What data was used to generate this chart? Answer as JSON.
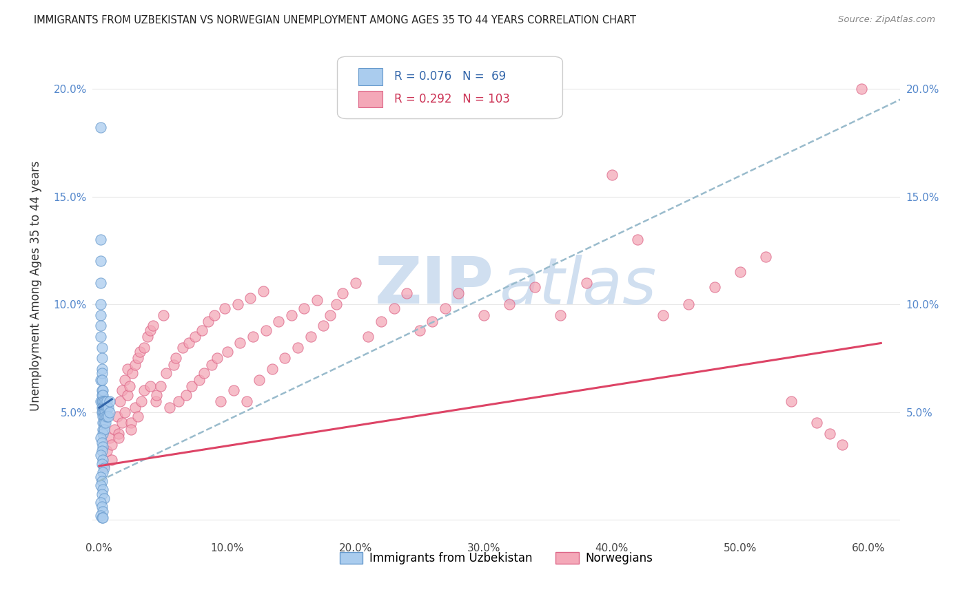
{
  "title": "IMMIGRANTS FROM UZBEKISTAN VS NORWEGIAN UNEMPLOYMENT AMONG AGES 35 TO 44 YEARS CORRELATION CHART",
  "source": "Source: ZipAtlas.com",
  "ylabel": "Unemployment Among Ages 35 to 44 years",
  "xlim": [
    -0.005,
    0.625
  ],
  "ylim": [
    -0.008,
    0.225
  ],
  "xticks": [
    0.0,
    0.1,
    0.2,
    0.3,
    0.4,
    0.5,
    0.6
  ],
  "xticklabels": [
    "0.0%",
    "10.0%",
    "20.0%",
    "30.0%",
    "40.0%",
    "50.0%",
    "60.0%"
  ],
  "yticks": [
    0.0,
    0.05,
    0.1,
    0.15,
    0.2
  ],
  "yticklabels": [
    "",
    "5.0%",
    "10.0%",
    "15.0%",
    "20.0%"
  ],
  "blue_face": "#aaccee",
  "blue_edge": "#6699cc",
  "pink_face": "#f4a8b8",
  "pink_edge": "#dd6688",
  "blue_line": "#3366aa",
  "pink_line": "#dd4466",
  "dash_line": "#99bbcc",
  "watermark": "#d0dff0",
  "bg": "#ffffff",
  "grid_color": "#e8e8e8",
  "blue_line_x": [
    0.0,
    0.01
  ],
  "blue_line_y": [
    0.052,
    0.056
  ],
  "pink_line_x": [
    0.0,
    0.61
  ],
  "pink_line_y": [
    0.025,
    0.082
  ],
  "dash_line_x": [
    0.0,
    0.625
  ],
  "dash_line_y": [
    0.018,
    0.195
  ],
  "uzbek_x": [
    0.001,
    0.001,
    0.001,
    0.001,
    0.001,
    0.001,
    0.001,
    0.001,
    0.001,
    0.001,
    0.002,
    0.002,
    0.002,
    0.002,
    0.002,
    0.002,
    0.002,
    0.002,
    0.002,
    0.002,
    0.003,
    0.003,
    0.003,
    0.003,
    0.003,
    0.003,
    0.003,
    0.003,
    0.003,
    0.004,
    0.004,
    0.004,
    0.004,
    0.004,
    0.004,
    0.005,
    0.005,
    0.005,
    0.005,
    0.005,
    0.006,
    0.006,
    0.006,
    0.007,
    0.007,
    0.008,
    0.008,
    0.001,
    0.002,
    0.003,
    0.002,
    0.001,
    0.003,
    0.002,
    0.004,
    0.003,
    0.001,
    0.002,
    0.001,
    0.003,
    0.002,
    0.004,
    0.001,
    0.002,
    0.003,
    0.001,
    0.002,
    0.003
  ],
  "uzbek_y": [
    0.182,
    0.13,
    0.12,
    0.11,
    0.1,
    0.095,
    0.09,
    0.085,
    0.065,
    0.055,
    0.08,
    0.075,
    0.07,
    0.068,
    0.065,
    0.06,
    0.058,
    0.055,
    0.052,
    0.05,
    0.06,
    0.058,
    0.055,
    0.052,
    0.05,
    0.048,
    0.045,
    0.042,
    0.04,
    0.055,
    0.052,
    0.05,
    0.048,
    0.045,
    0.042,
    0.055,
    0.052,
    0.05,
    0.048,
    0.045,
    0.055,
    0.052,
    0.048,
    0.052,
    0.048,
    0.055,
    0.05,
    0.038,
    0.036,
    0.034,
    0.032,
    0.03,
    0.028,
    0.026,
    0.024,
    0.022,
    0.02,
    0.018,
    0.016,
    0.014,
    0.012,
    0.01,
    0.008,
    0.006,
    0.004,
    0.002,
    0.001,
    0.001
  ],
  "norw_x": [
    0.004,
    0.006,
    0.008,
    0.01,
    0.012,
    0.014,
    0.015,
    0.016,
    0.018,
    0.018,
    0.02,
    0.02,
    0.022,
    0.022,
    0.024,
    0.025,
    0.026,
    0.028,
    0.028,
    0.03,
    0.03,
    0.032,
    0.033,
    0.035,
    0.035,
    0.038,
    0.04,
    0.04,
    0.042,
    0.044,
    0.045,
    0.048,
    0.05,
    0.052,
    0.055,
    0.058,
    0.06,
    0.062,
    0.065,
    0.068,
    0.07,
    0.072,
    0.075,
    0.078,
    0.08,
    0.082,
    0.085,
    0.088,
    0.09,
    0.092,
    0.095,
    0.098,
    0.1,
    0.105,
    0.108,
    0.11,
    0.115,
    0.118,
    0.12,
    0.125,
    0.128,
    0.13,
    0.135,
    0.14,
    0.145,
    0.15,
    0.155,
    0.16,
    0.165,
    0.17,
    0.175,
    0.18,
    0.185,
    0.19,
    0.2,
    0.21,
    0.22,
    0.23,
    0.24,
    0.25,
    0.26,
    0.27,
    0.28,
    0.3,
    0.32,
    0.34,
    0.36,
    0.38,
    0.4,
    0.42,
    0.44,
    0.46,
    0.48,
    0.5,
    0.52,
    0.54,
    0.56,
    0.57,
    0.58,
    0.595,
    0.01,
    0.015,
    0.025
  ],
  "norw_y": [
    0.025,
    0.032,
    0.038,
    0.035,
    0.042,
    0.048,
    0.04,
    0.055,
    0.045,
    0.06,
    0.065,
    0.05,
    0.07,
    0.058,
    0.062,
    0.045,
    0.068,
    0.072,
    0.052,
    0.075,
    0.048,
    0.078,
    0.055,
    0.08,
    0.06,
    0.085,
    0.088,
    0.062,
    0.09,
    0.055,
    0.058,
    0.062,
    0.095,
    0.068,
    0.052,
    0.072,
    0.075,
    0.055,
    0.08,
    0.058,
    0.082,
    0.062,
    0.085,
    0.065,
    0.088,
    0.068,
    0.092,
    0.072,
    0.095,
    0.075,
    0.055,
    0.098,
    0.078,
    0.06,
    0.1,
    0.082,
    0.055,
    0.103,
    0.085,
    0.065,
    0.106,
    0.088,
    0.07,
    0.092,
    0.075,
    0.095,
    0.08,
    0.098,
    0.085,
    0.102,
    0.09,
    0.095,
    0.1,
    0.105,
    0.11,
    0.085,
    0.092,
    0.098,
    0.105,
    0.088,
    0.092,
    0.098,
    0.105,
    0.095,
    0.1,
    0.108,
    0.095,
    0.11,
    0.16,
    0.13,
    0.095,
    0.1,
    0.108,
    0.115,
    0.122,
    0.055,
    0.045,
    0.04,
    0.035,
    0.2,
    0.028,
    0.038,
    0.042
  ]
}
